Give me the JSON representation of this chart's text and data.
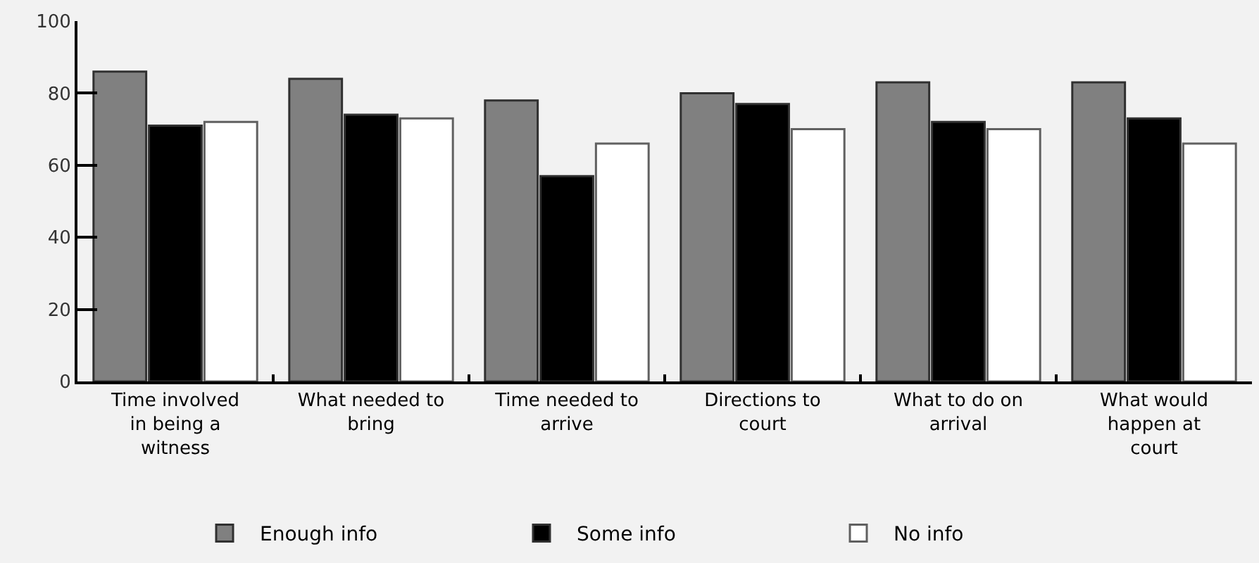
{
  "chart_data": {
    "type": "bar",
    "categories": [
      "Time involved in being a witness",
      "What needed to bring",
      "Time needed to arrive",
      "Directions to court",
      "What to do on arrival",
      "What would happen at court"
    ],
    "series": [
      {
        "name": "Enough info",
        "color": "#808080",
        "values": [
          86,
          84,
          78,
          80,
          83,
          83
        ]
      },
      {
        "name": "Some info",
        "color": "#000000",
        "values": [
          71,
          74,
          57,
          77,
          72,
          73
        ]
      },
      {
        "name": "No info",
        "color": "#ffffff",
        "values": [
          72,
          73,
          66,
          70,
          70,
          66
        ]
      }
    ],
    "ylim": [
      0,
      100
    ],
    "yticks": [
      0,
      20,
      40,
      60,
      80,
      100
    ],
    "grid": false,
    "legend": "bottom"
  }
}
